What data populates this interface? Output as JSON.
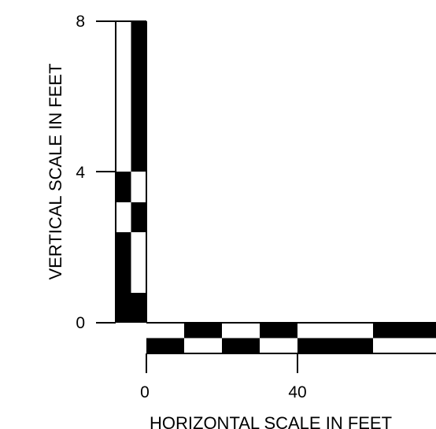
{
  "figure": {
    "vertical_axis": {
      "label": "VERTICAL SCALE IN FEET",
      "ticks": [
        {
          "value": 0,
          "label": "0"
        },
        {
          "value": 4,
          "label": "4"
        },
        {
          "value": 8,
          "label": "8"
        }
      ],
      "range": [
        0,
        8
      ],
      "checker_columns": 2,
      "left_column_pattern": [
        "white",
        "white",
        "black",
        "white",
        "black",
        "black",
        "black"
      ],
      "right_column_pattern": [
        "black",
        "black",
        "white",
        "black",
        "white",
        "white",
        "black"
      ]
    },
    "horizontal_axis": {
      "label": "HORIZONTAL SCALE IN FEET",
      "ticks": [
        {
          "value": 0,
          "label": "0"
        },
        {
          "value": 40,
          "label": "40"
        }
      ],
      "checker_rows": 2,
      "top_row_pattern": [
        "white",
        "black",
        "white",
        "black",
        "white",
        "black"
      ],
      "bottom_row_pattern": [
        "black",
        "white",
        "black",
        "white",
        "black",
        "white"
      ]
    },
    "colors": {
      "ink": "#000000",
      "paper": "#ffffff"
    }
  }
}
